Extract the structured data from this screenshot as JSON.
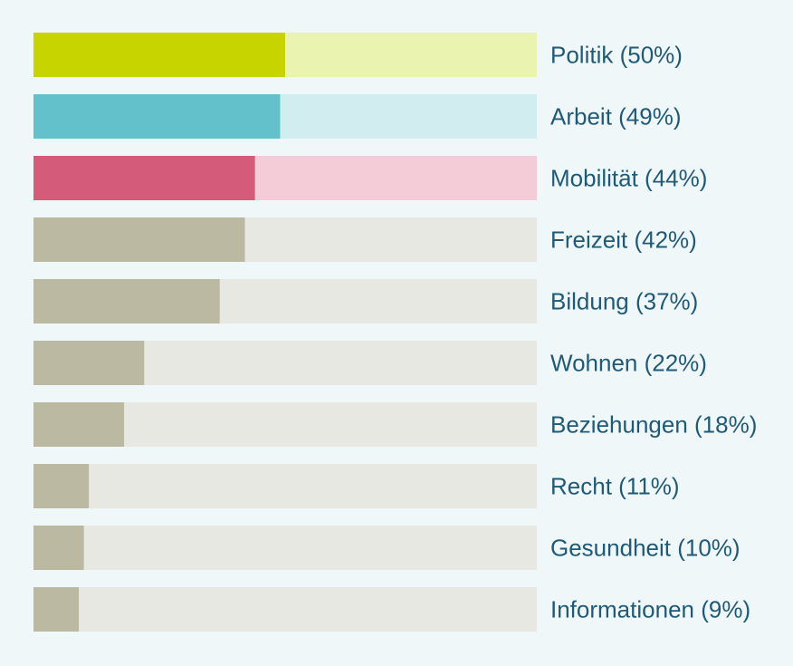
{
  "chart_data": {
    "type": "bar",
    "orientation": "horizontal",
    "categories": [
      "Politik",
      "Arbeit",
      "Mobilität",
      "Freizeit",
      "Bildung",
      "Wohnen",
      "Beziehungen",
      "Recht",
      "Gesundheit",
      "Informationen"
    ],
    "labels": [
      "Politik (50%)",
      "Arbeit (49%)",
      "Mobilität (44%)",
      "Freizeit (42%)",
      "Bildung (37%)",
      "Wohnen (22%)",
      "Beziehungen (18%)",
      "Recht (11%)",
      "Gesundheit (10%)",
      "Informationen (9%)"
    ],
    "values": [
      50,
      49,
      44,
      42,
      37,
      22,
      18,
      11,
      10,
      9
    ],
    "xlim": [
      0,
      100
    ],
    "unit": "%",
    "grid": false,
    "legend": false,
    "bar_colors": [
      "#c8d400",
      "#62c1cb",
      "#d45c7a",
      "#bbb9a2",
      "#bbb9a2",
      "#bbb9a2",
      "#bbb9a2",
      "#bbb9a2",
      "#bbb9a2",
      "#bbb9a2"
    ],
    "track_colors": [
      "#ebf3b0",
      "#d1edf0",
      "#f3ccd8",
      "#e8e8e2",
      "#e8e8e2",
      "#e8e8e2",
      "#e8e8e2",
      "#e8e8e2",
      "#e8e8e2",
      "#e8e8e2"
    ],
    "label_color": "#1f5a78",
    "background_color": "#eff7f9"
  }
}
